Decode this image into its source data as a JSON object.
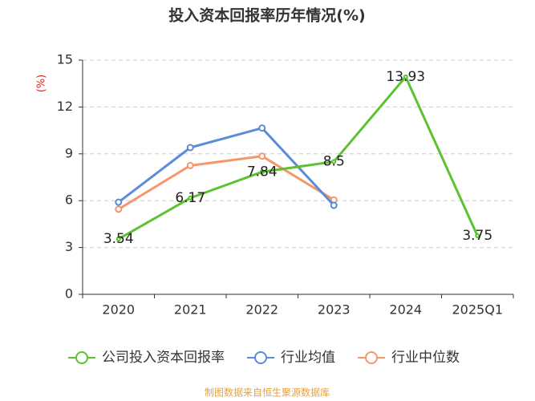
{
  "chart_data": {
    "type": "line",
    "title": "投入资本回报率历年情况(%)",
    "y_label": "(%)",
    "categories": [
      "2020",
      "2021",
      "2022",
      "2023",
      "2024",
      "2025Q1"
    ],
    "series": [
      {
        "name": "公司投入资本回报率",
        "color": "#5cc22f",
        "values": [
          3.54,
          6.17,
          7.84,
          8.5,
          13.93,
          3.75
        ],
        "show_labels": true
      },
      {
        "name": "行业均值",
        "color": "#5b8bd9",
        "values": [
          5.9,
          9.4,
          10.65,
          5.7,
          null,
          null
        ]
      },
      {
        "name": "行业中位数",
        "color": "#f5966b",
        "values": [
          5.45,
          8.25,
          8.85,
          6.05,
          null,
          null
        ]
      }
    ],
    "ylim": [
      0,
      15
    ],
    "yticks": [
      0,
      3,
      6,
      9,
      12,
      15
    ],
    "grid": true,
    "source": "制图数据来自恒生聚源数据库"
  }
}
